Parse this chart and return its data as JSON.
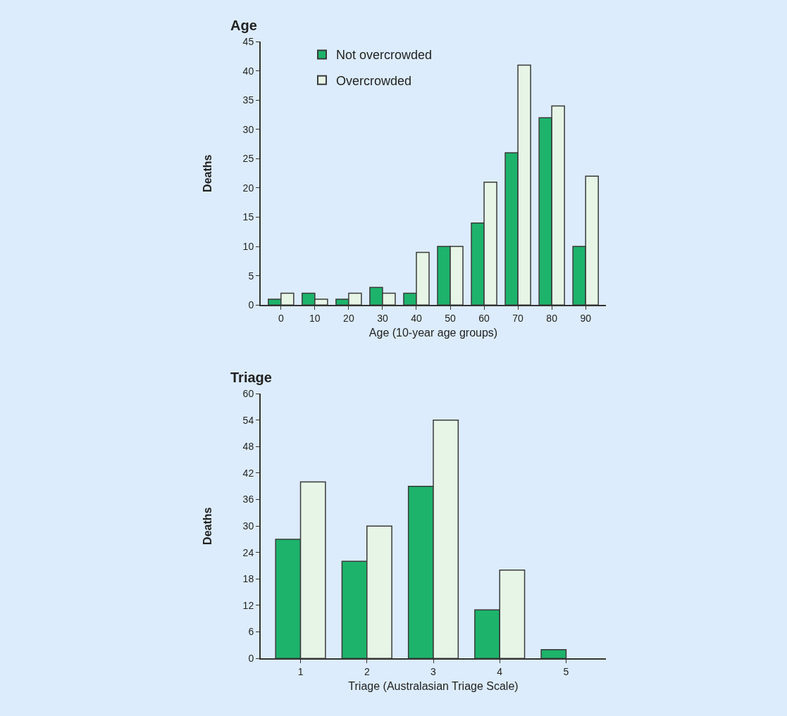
{
  "chart_data": [
    {
      "type": "bar",
      "title": "Age",
      "xlabel": "Age (10-year age groups)",
      "ylabel": "Deaths",
      "categories": [
        "0",
        "10",
        "20",
        "30",
        "40",
        "50",
        "60",
        "70",
        "80",
        "90"
      ],
      "series": [
        {
          "name": "Not overcrowded",
          "color": "#1db36b",
          "values": [
            1,
            2,
            1,
            3,
            2,
            10,
            14,
            26,
            32,
            10
          ]
        },
        {
          "name": "Overcrowded",
          "color": "#e6f5e6",
          "values": [
            2,
            1,
            2,
            2,
            9,
            10,
            21,
            41,
            34,
            22
          ]
        }
      ],
      "ylim": [
        0,
        45
      ],
      "yticks": [
        0,
        5,
        10,
        15,
        20,
        25,
        30,
        35,
        40,
        45
      ],
      "grid": false,
      "legend": "top left"
    },
    {
      "type": "bar",
      "title": "Triage",
      "xlabel": "Triage (Australasian Triage Scale)",
      "ylabel": "Deaths",
      "categories": [
        "1",
        "2",
        "3",
        "4",
        "5"
      ],
      "series": [
        {
          "color": "#1db36b",
          "values": [
            27,
            22,
            39,
            11,
            2
          ]
        },
        {
          "color": "#e6f5e6",
          "values": [
            40,
            30,
            54,
            20,
            null
          ]
        }
      ],
      "ylim": [
        0,
        60
      ],
      "yticks": [
        0,
        6,
        12,
        18,
        24,
        30,
        36,
        42,
        48,
        54,
        60
      ],
      "grid": false
    }
  ]
}
